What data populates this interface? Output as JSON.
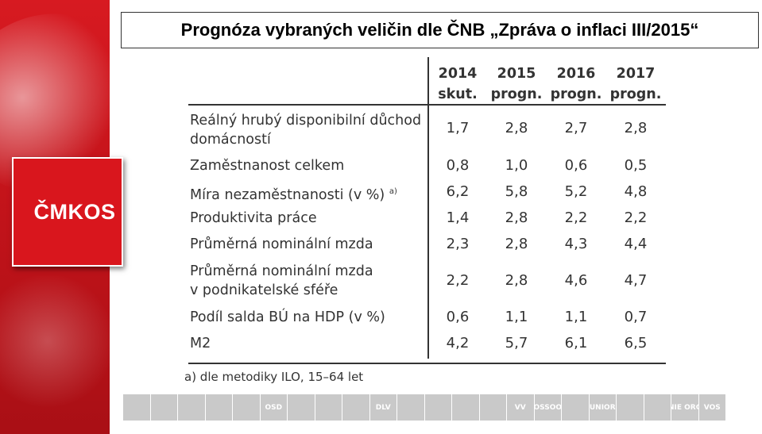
{
  "slide": {
    "title": "Prognóza vybraných veličin dle ČNB „Zpráva o inflaci III/2015“",
    "brand": "ČMKOS",
    "brand_color": "#d9161d"
  },
  "table": {
    "columns": [
      {
        "year": "2014",
        "type": "skut."
      },
      {
        "year": "2015",
        "type": "progn."
      },
      {
        "year": "2016",
        "type": "progn."
      },
      {
        "year": "2017",
        "type": "progn."
      }
    ],
    "rows": [
      {
        "label1": "Reálný hrubý disponibilní důchod",
        "label2": "domácností",
        "values": [
          "1,7",
          "2,8",
          "2,7",
          "2,8"
        ]
      },
      {
        "label1": "Zaměstnanost celkem",
        "values": [
          "0,8",
          "1,0",
          "0,6",
          "0,5"
        ]
      },
      {
        "label1": "Míra nezaměstnanosti (v %)",
        "sup": "a)",
        "values": [
          "6,2",
          "5,8",
          "5,2",
          "4,8"
        ]
      },
      {
        "label1": "Produktivita práce",
        "values": [
          "1,4",
          "2,8",
          "2,2",
          "2,2"
        ]
      },
      {
        "label1": "Průměrná nominální mzda",
        "values": [
          "2,3",
          "2,8",
          "4,3",
          "4,4"
        ]
      },
      {
        "label1": "Průměrná nominální mzda",
        "label2": "v podnikatelské sféře",
        "values": [
          "2,2",
          "2,8",
          "4,6",
          "4,7"
        ]
      },
      {
        "label1": "Podíl salda BÚ na HDP (v %)",
        "values": [
          "0,6",
          "1,1",
          "1,1",
          "0,7"
        ]
      },
      {
        "label1": "M2",
        "values": [
          "4,2",
          "5,7",
          "6,1",
          "6,5"
        ]
      }
    ],
    "footnote": "a) dle metodiky ILO, 15–64 let"
  },
  "logos": [
    "",
    "",
    "",
    "",
    "",
    "OSD",
    "",
    "",
    "",
    "DLV",
    "",
    "",
    "",
    "",
    "VV",
    "OSSOO",
    "",
    "UNIOR",
    "",
    "",
    "UNIE ORCH",
    "VOS"
  ]
}
